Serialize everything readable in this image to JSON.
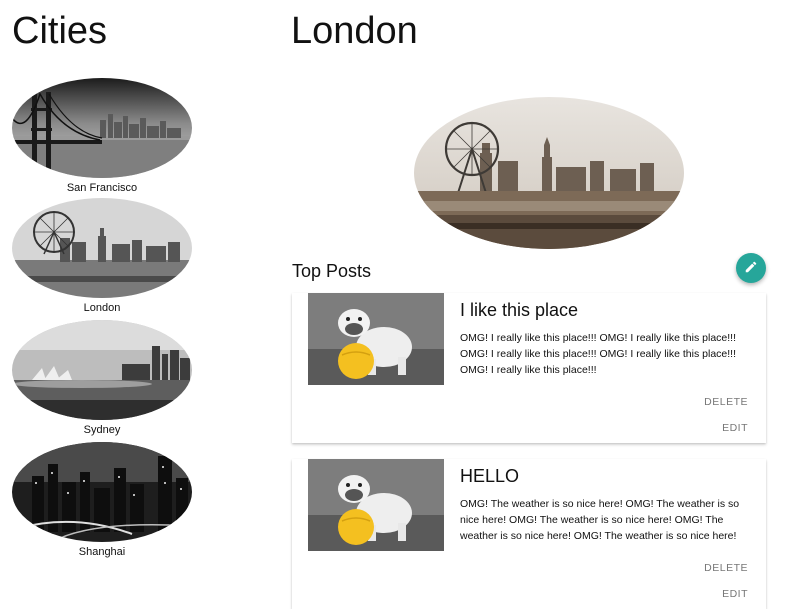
{
  "sidebar": {
    "title": "Cities",
    "cities": [
      {
        "name": "San Francisco"
      },
      {
        "name": "London"
      },
      {
        "name": "Sydney"
      },
      {
        "name": "Shanghai"
      }
    ]
  },
  "main": {
    "city_title": "London",
    "section_title": "Top Posts",
    "fab_icon": "pencil-icon",
    "accent_color": "#26a69a",
    "posts": [
      {
        "title": "I like this place",
        "body": "OMG! I really like this place!!! OMG! I really like this place!!! OMG! I really like this place!!! OMG! I really like this place!!! OMG! I really like this place!!!",
        "delete_label": "DELETE",
        "edit_label": "EDIT"
      },
      {
        "title": "HELLO",
        "body": "OMG! The weather is so nice here! OMG! The weather is so nice here! OMG! The weather is so nice here! OMG! The weather is so nice here! OMG! The weather is so nice here!",
        "delete_label": "DELETE",
        "edit_label": "EDIT"
      }
    ]
  }
}
